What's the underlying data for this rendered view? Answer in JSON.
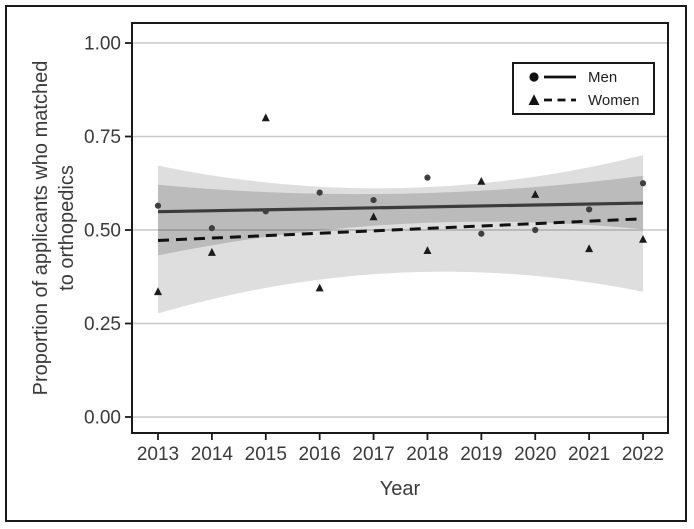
{
  "chart_data": {
    "type": "scatter",
    "title": "",
    "xlabel": "Year",
    "ylabel_lines": [
      "Proportion of applicants who matched",
      "to orthopedics"
    ],
    "years": [
      2013,
      2014,
      2015,
      2016,
      2017,
      2018,
      2019,
      2020,
      2021,
      2022
    ],
    "x_tick_labels": [
      "2013",
      "2014",
      "2015",
      "2016",
      "2017",
      "2018",
      "2019",
      "2020",
      "2021",
      "2022"
    ],
    "y_ticks": [
      0.0,
      0.25,
      0.5,
      0.75,
      1.0
    ],
    "y_tick_labels": [
      "0.00",
      "0.25",
      "0.50",
      "0.75",
      "1.00"
    ],
    "ylim": [
      -0.04,
      1.06
    ],
    "grid": "horizontal-only",
    "legend_position": "top-right-inside",
    "series": [
      {
        "name": "Men",
        "marker": "circle",
        "line_style": "solid",
        "values": [
          0.565,
          0.505,
          0.55,
          0.6,
          0.58,
          0.64,
          0.49,
          0.5,
          0.555,
          0.625
        ],
        "trend_line": {
          "start": 0.549,
          "end": 0.572
        },
        "ci_band": {
          "hi_anchors": [
            0.621,
            0.597,
            0.645
          ],
          "lo_anchors": [
            0.432,
            0.516,
            0.502
          ]
        }
      },
      {
        "name": "Women",
        "marker": "triangle",
        "line_style": "dashed",
        "values": [
          0.335,
          0.44,
          0.8,
          0.345,
          0.535,
          0.445,
          0.63,
          0.595,
          0.45,
          0.475
        ],
        "trend_line": {
          "start": 0.472,
          "end": 0.53
        },
        "ci_band": {
          "hi_anchors": [
            0.672,
            0.612,
            0.7
          ],
          "lo_anchors": [
            0.277,
            0.386,
            0.335
          ]
        }
      }
    ]
  },
  "legend": {
    "items": [
      {
        "label": "Men",
        "marker": "circle",
        "line": "solid"
      },
      {
        "label": "Women",
        "marker": "triangle",
        "line": "dashed"
      }
    ]
  },
  "colors": {
    "text": "#3a3a3a",
    "axis": "#1a1a1a",
    "grid": "#c9c9c9",
    "men_line": "#3c3c3c",
    "women_line": "#111111",
    "men_marker": "#3f3f3f",
    "women_marker": "#1b1b1b",
    "men_band": "rgba(0,0,0,0.155)",
    "women_band": "rgba(0,0,0,0.13)",
    "border": "#1a1a1a",
    "background": "#ffffff"
  }
}
